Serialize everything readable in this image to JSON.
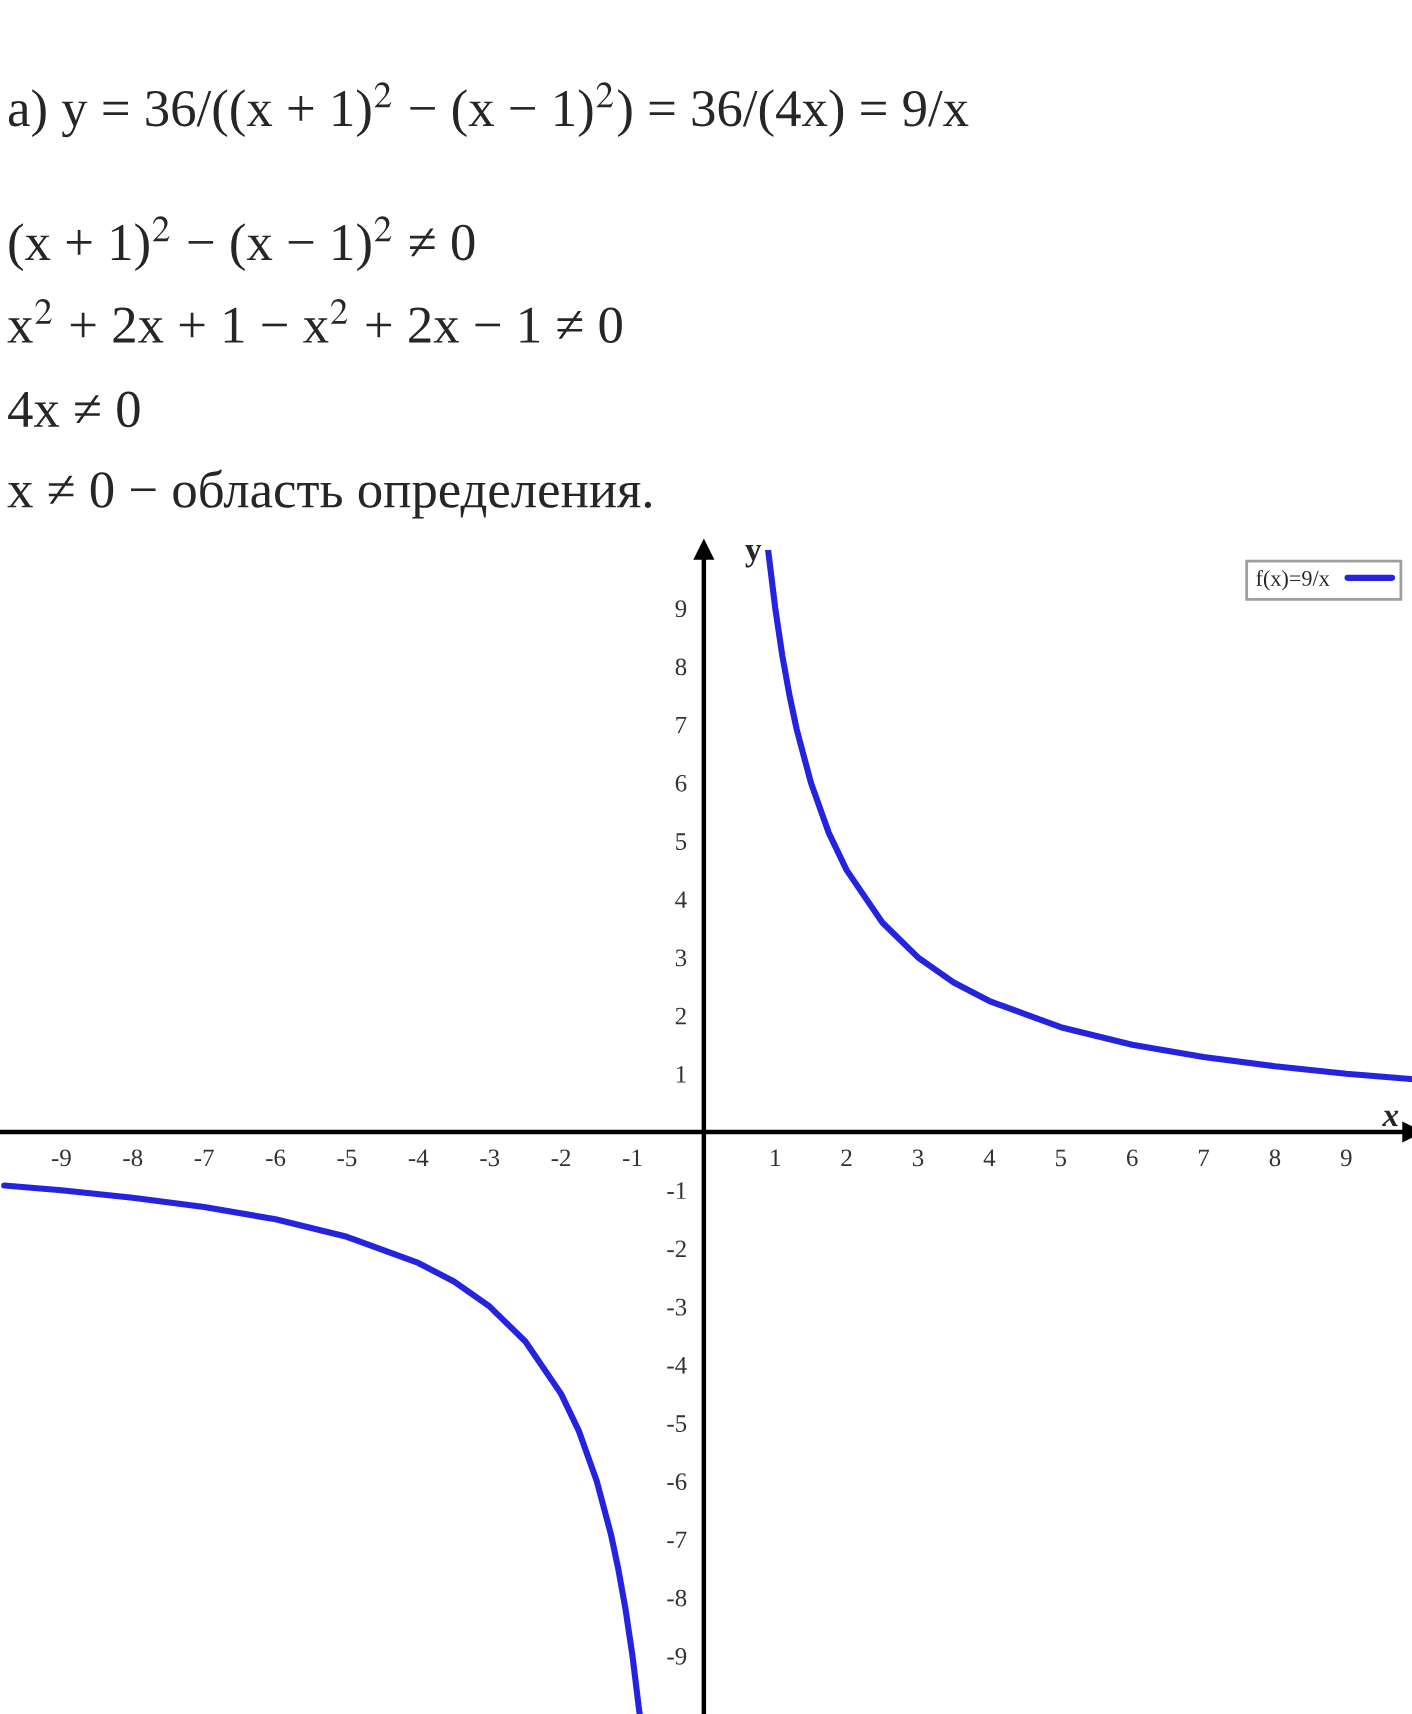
{
  "chart_data": {
    "type": "line",
    "annotations": [
      "a) y = 36/((x + 1)$^{2}$ − (x − 1)$^{2}$) = 36/(4x) = 9/x",
      "(x + 1)$^{2}$ − (x − 1)$^{2}$ ≠ 0",
      "x$^{2}$ + 2x + 1 − x$^{2}$ + 2x − 1 ≠ 0",
      "4x ≠ 0",
      "x ≠ 0 − область определения."
    ],
    "xlabel": "x",
    "ylabel": "y",
    "x": [
      -9.8,
      -9,
      -8,
      -7,
      -6,
      -5,
      -4,
      -3.5,
      -3,
      -2.5,
      -2,
      -1.75,
      -1.5,
      -1.3,
      -1.2,
      -1.1,
      -1,
      -0.9,
      0,
      0.9,
      1,
      1.1,
      1.2,
      1.3,
      1.5,
      1.75,
      2,
      2.5,
      3,
      3.5,
      4,
      5,
      6,
      7,
      8,
      9,
      9.9
    ],
    "series": [
      {
        "name": "f(x)=9/x",
        "color": "#2424e0",
        "values": [
          -0.92,
          -1,
          -1.13,
          -1.29,
          -1.5,
          -1.8,
          -2.25,
          -2.57,
          -3,
          -3.6,
          -4.5,
          -5.14,
          -6,
          -6.92,
          -7.5,
          -8.18,
          -9,
          -10,
          null,
          10,
          9,
          8.18,
          7.5,
          6.92,
          6,
          5.14,
          4.5,
          3.6,
          3,
          2.57,
          2.25,
          1.8,
          1.5,
          1.29,
          1.13,
          1,
          0.91
        ]
      }
    ],
    "xlim": [
      -9.86,
      9.92
    ],
    "ylim": [
      -10,
      10
    ],
    "xticks": [
      -9,
      -8,
      -7,
      -6,
      -5,
      -4,
      -3,
      -2,
      -1,
      1,
      2,
      3,
      4,
      5,
      6,
      7,
      8,
      9
    ],
    "yticks": [
      -9,
      -8,
      -7,
      -6,
      -5,
      -4,
      -3,
      -2,
      -1,
      1,
      2,
      3,
      4,
      5,
      6,
      7,
      8,
      9
    ],
    "grid": false,
    "legend": "top right",
    "marker": "none",
    "line_style": "solid"
  }
}
